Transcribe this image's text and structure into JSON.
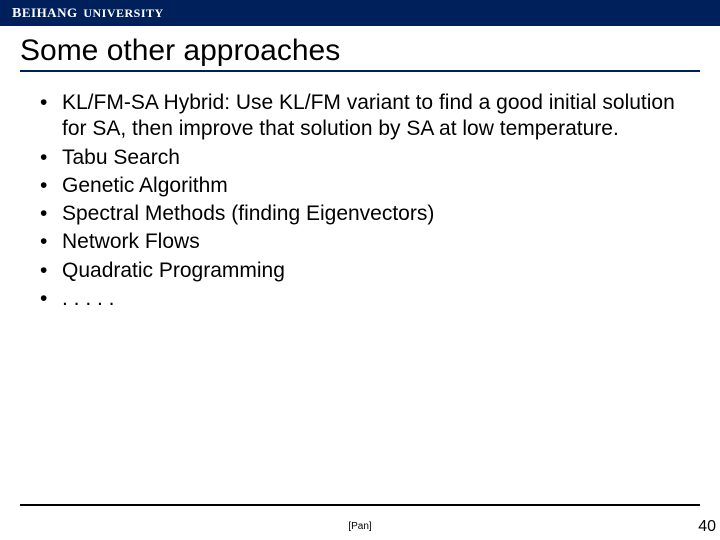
{
  "header": {
    "brand_first": "B",
    "brand_rest": "EIHANG",
    "sub_first": "U",
    "sub_rest": "NIVERSITY",
    "bg_color": "#00205b",
    "text_color": "#ffffff"
  },
  "title": {
    "text": "Some other approaches",
    "underline_color": "#00205b",
    "fontsize": 30
  },
  "bullets": [
    "KL/FM-SA Hybrid: Use KL/FM variant to find a good initial solution for SA, then improve that solution by SA at low temperature.",
    "Tabu Search",
    "Genetic Algorithm",
    "Spectral Methods (finding Eigenvectors)",
    "Network Flows",
    "Quadratic Programming",
    ". . . . ."
  ],
  "footer": {
    "citation": "[Pan]",
    "page_number": "40",
    "line_color": "#000000"
  },
  "body_text": {
    "fontsize": 21,
    "color": "#000000"
  }
}
